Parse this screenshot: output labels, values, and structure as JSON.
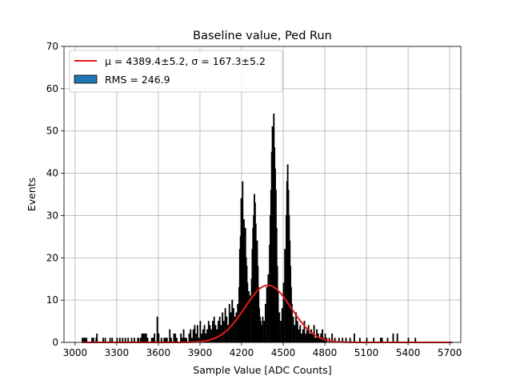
{
  "chart_data": {
    "type": "bar",
    "title": "Baseline value, Ped Run",
    "xlabel": "Sample Value [ADC Counts]",
    "ylabel": "Events",
    "xlim": [
      2920,
      5780
    ],
    "ylim": [
      0,
      70
    ],
    "xticks": [
      3000,
      3300,
      3600,
      3900,
      4200,
      4500,
      4800,
      5100,
      5400,
      5700
    ],
    "yticks": [
      0,
      10,
      20,
      30,
      40,
      50,
      60,
      70
    ],
    "grid": true,
    "legend_position": "top-left",
    "legend": [
      {
        "label": "μ = 4389.4±5.2, σ = 167.3±5.2",
        "kind": "line",
        "color": "#e41a1c"
      },
      {
        "label": "RMS = 246.9",
        "kind": "patch",
        "color": "#1f77b4"
      }
    ],
    "histogram": {
      "bin_width": 5,
      "color": "#1f77b4",
      "edgecolor": "#000000",
      "bins": [
        [
          3050,
          1
        ],
        [
          3060,
          1
        ],
        [
          3070,
          1
        ],
        [
          3080,
          1
        ],
        [
          3120,
          1
        ],
        [
          3130,
          1
        ],
        [
          3150,
          1
        ],
        [
          3155,
          2
        ],
        [
          3200,
          1
        ],
        [
          3215,
          1
        ],
        [
          3250,
          1
        ],
        [
          3265,
          1
        ],
        [
          3300,
          1
        ],
        [
          3320,
          1
        ],
        [
          3340,
          1
        ],
        [
          3360,
          1
        ],
        [
          3380,
          1
        ],
        [
          3405,
          1
        ],
        [
          3425,
          1
        ],
        [
          3450,
          1
        ],
        [
          3455,
          1
        ],
        [
          3470,
          1
        ],
        [
          3480,
          2
        ],
        [
          3490,
          2
        ],
        [
          3500,
          2
        ],
        [
          3510,
          2
        ],
        [
          3520,
          1
        ],
        [
          3550,
          1
        ],
        [
          3560,
          1
        ],
        [
          3570,
          2
        ],
        [
          3590,
          6
        ],
        [
          3600,
          2
        ],
        [
          3620,
          1
        ],
        [
          3640,
          1
        ],
        [
          3650,
          1
        ],
        [
          3660,
          1
        ],
        [
          3680,
          3
        ],
        [
          3690,
          1
        ],
        [
          3710,
          2
        ],
        [
          3720,
          2
        ],
        [
          3730,
          1
        ],
        [
          3760,
          2
        ],
        [
          3770,
          1
        ],
        [
          3780,
          3
        ],
        [
          3790,
          1
        ],
        [
          3800,
          1
        ],
        [
          3820,
          2
        ],
        [
          3830,
          3
        ],
        [
          3840,
          1
        ],
        [
          3850,
          3
        ],
        [
          3860,
          4
        ],
        [
          3870,
          2
        ],
        [
          3880,
          4
        ],
        [
          3890,
          1
        ],
        [
          3900,
          5
        ],
        [
          3910,
          2
        ],
        [
          3920,
          3
        ],
        [
          3930,
          4
        ],
        [
          3940,
          2
        ],
        [
          3950,
          3
        ],
        [
          3960,
          5
        ],
        [
          3970,
          4
        ],
        [
          3980,
          3
        ],
        [
          3990,
          5
        ],
        [
          4000,
          6
        ],
        [
          4010,
          4
        ],
        [
          4020,
          3
        ],
        [
          4030,
          5
        ],
        [
          4040,
          6
        ],
        [
          4050,
          4
        ],
        [
          4060,
          7
        ],
        [
          4070,
          5
        ],
        [
          4080,
          8
        ],
        [
          4090,
          6
        ],
        [
          4100,
          4
        ],
        [
          4110,
          9
        ],
        [
          4120,
          7
        ],
        [
          4130,
          10
        ],
        [
          4140,
          8
        ],
        [
          4150,
          6
        ],
        [
          4160,
          7
        ],
        [
          4170,
          9
        ],
        [
          4180,
          13
        ],
        [
          4185,
          22
        ],
        [
          4190,
          25
        ],
        [
          4195,
          34
        ],
        [
          4200,
          31
        ],
        [
          4205,
          38
        ],
        [
          4210,
          26
        ],
        [
          4215,
          29
        ],
        [
          4220,
          22
        ],
        [
          4225,
          27
        ],
        [
          4230,
          20
        ],
        [
          4235,
          18
        ],
        [
          4240,
          14
        ],
        [
          4245,
          10
        ],
        [
          4250,
          12
        ],
        [
          4255,
          9
        ],
        [
          4260,
          11
        ],
        [
          4270,
          15
        ],
        [
          4275,
          22
        ],
        [
          4280,
          27
        ],
        [
          4285,
          30
        ],
        [
          4290,
          35
        ],
        [
          4295,
          33
        ],
        [
          4300,
          28
        ],
        [
          4305,
          21
        ],
        [
          4310,
          24
        ],
        [
          4315,
          18
        ],
        [
          4320,
          13
        ],
        [
          4325,
          8
        ],
        [
          4330,
          6
        ],
        [
          4335,
          5
        ],
        [
          4340,
          4
        ],
        [
          4345,
          3
        ],
        [
          4350,
          6
        ],
        [
          4360,
          5
        ],
        [
          4370,
          9
        ],
        [
          4380,
          13
        ],
        [
          4385,
          11
        ],
        [
          4390,
          16
        ],
        [
          4400,
          23
        ],
        [
          4405,
          30
        ],
        [
          4410,
          36
        ],
        [
          4415,
          45
        ],
        [
          4420,
          51
        ],
        [
          4425,
          48
        ],
        [
          4430,
          54
        ],
        [
          4435,
          46
        ],
        [
          4440,
          41
        ],
        [
          4445,
          36
        ],
        [
          4450,
          27
        ],
        [
          4455,
          18
        ],
        [
          4460,
          12
        ],
        [
          4470,
          7
        ],
        [
          4480,
          5
        ],
        [
          4490,
          8
        ],
        [
          4500,
          14
        ],
        [
          4510,
          22
        ],
        [
          4520,
          30
        ],
        [
          4525,
          38
        ],
        [
          4530,
          42
        ],
        [
          4535,
          36
        ],
        [
          4540,
          30
        ],
        [
          4545,
          24
        ],
        [
          4550,
          18
        ],
        [
          4555,
          13
        ],
        [
          4560,
          9
        ],
        [
          4570,
          6
        ],
        [
          4580,
          4
        ],
        [
          4590,
          7
        ],
        [
          4600,
          5
        ],
        [
          4610,
          3
        ],
        [
          4620,
          4
        ],
        [
          4630,
          2
        ],
        [
          4640,
          3
        ],
        [
          4650,
          5
        ],
        [
          4660,
          2
        ],
        [
          4670,
          3
        ],
        [
          4680,
          4
        ],
        [
          4690,
          2
        ],
        [
          4700,
          3
        ],
        [
          4710,
          2
        ],
        [
          4720,
          4
        ],
        [
          4730,
          1
        ],
        [
          4740,
          3
        ],
        [
          4750,
          2
        ],
        [
          4760,
          1
        ],
        [
          4770,
          2
        ],
        [
          4780,
          3
        ],
        [
          4790,
          1
        ],
        [
          4800,
          2
        ],
        [
          4810,
          1
        ],
        [
          4830,
          1
        ],
        [
          4850,
          2
        ],
        [
          4870,
          1
        ],
        [
          4900,
          1
        ],
        [
          4925,
          1
        ],
        [
          4950,
          1
        ],
        [
          4980,
          1
        ],
        [
          5010,
          2
        ],
        [
          5050,
          1
        ],
        [
          5100,
          1
        ],
        [
          5150,
          1
        ],
        [
          5200,
          1
        ],
        [
          5210,
          1
        ],
        [
          5250,
          1
        ],
        [
          5290,
          2
        ],
        [
          5320,
          2
        ],
        [
          5400,
          1
        ],
        [
          5450,
          1
        ]
      ]
    },
    "fit": {
      "type": "gaussian",
      "mu": 4389.4,
      "sigma": 167.3,
      "amplitude": 13.5,
      "x_range": [
        3050,
        5720
      ],
      "color": "#e41a1c"
    }
  }
}
